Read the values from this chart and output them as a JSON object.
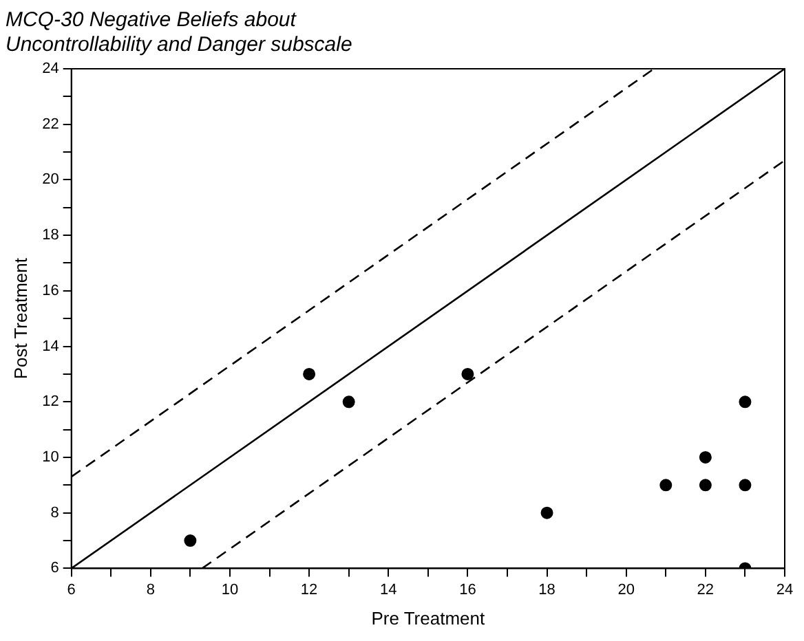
{
  "chart_data": {
    "type": "scatter",
    "title": "MCQ-30 Negative Beliefs about\nUncontrollability and Danger subscale",
    "xlabel": "Pre Treatment",
    "ylabel": "Post Treatment",
    "xlim": [
      6,
      24
    ],
    "ylim": [
      6,
      24
    ],
    "xticks": [
      6,
      {
        "value": 7,
        "label": null
      },
      8,
      {
        "value": 9,
        "label": null
      },
      10,
      {
        "value": 11,
        "label": null
      },
      12,
      {
        "value": 13,
        "label": null
      },
      14,
      {
        "value": 15,
        "label": null
      },
      16,
      {
        "value": 17,
        "label": null
      },
      18,
      {
        "value": 19,
        "label": null
      },
      20,
      {
        "value": 21,
        "label": null
      },
      22,
      {
        "value": 23,
        "label": null
      },
      24
    ],
    "yticks": [
      6,
      {
        "value": 7,
        "label": null
      },
      8,
      {
        "value": 9,
        "label": null
      },
      10,
      {
        "value": 11,
        "label": null
      },
      12,
      {
        "value": 13,
        "label": null
      },
      14,
      {
        "value": 15,
        "label": null
      },
      16,
      {
        "value": 17,
        "label": null
      },
      18,
      {
        "value": 19,
        "label": null
      },
      20,
      {
        "value": 21,
        "label": null
      },
      22,
      {
        "value": 23,
        "label": null
      },
      24
    ],
    "grid": false,
    "legend": false,
    "marker": "circle",
    "series": [
      {
        "type": "scatter",
        "color": "#000000",
        "x": [
          9,
          12,
          13,
          16,
          18,
          21,
          22,
          22,
          23,
          23,
          23
        ],
        "values": [
          7,
          13,
          12,
          13,
          8,
          9,
          10,
          9,
          12,
          9,
          6
        ]
      },
      {
        "type": "line",
        "color": "#000000",
        "marker": "none",
        "line_style": "solid",
        "x": [
          6,
          24
        ],
        "values": [
          6,
          24
        ]
      },
      {
        "type": "line",
        "color": "#000000",
        "marker": "none",
        "line_style": "dashed",
        "x": [
          6,
          20.7
        ],
        "values": [
          9.3,
          24
        ]
      },
      {
        "type": "line",
        "color": "#000000",
        "marker": "none",
        "line_style": "dashed",
        "x": [
          9.3,
          24
        ],
        "values": [
          6,
          20.7
        ]
      }
    ]
  }
}
